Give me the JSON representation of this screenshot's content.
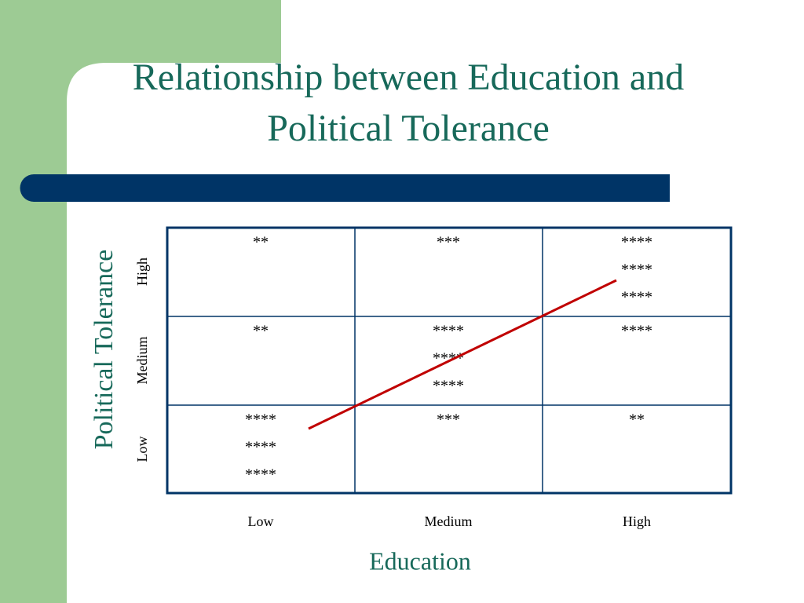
{
  "title": [
    "Relationship between Education and",
    "Political Tolerance"
  ],
  "y_axis_label": "Political Tolerance",
  "x_axis_label": "Education",
  "columns": [
    "Low",
    "Medium",
    "High"
  ],
  "table": {
    "rows": [
      {
        "label": "High",
        "cells": [
          [
            "**"
          ],
          [
            "***"
          ],
          [
            "****",
            "****",
            "****"
          ]
        ]
      },
      {
        "label": "Medium",
        "cells": [
          [
            "**"
          ],
          [
            "****",
            "****",
            "****"
          ],
          [
            "****"
          ]
        ]
      },
      {
        "label": "Low",
        "cells": [
          [
            "****",
            "****",
            "****"
          ],
          [
            "***"
          ],
          [
            "**"
          ]
        ]
      }
    ]
  }
}
